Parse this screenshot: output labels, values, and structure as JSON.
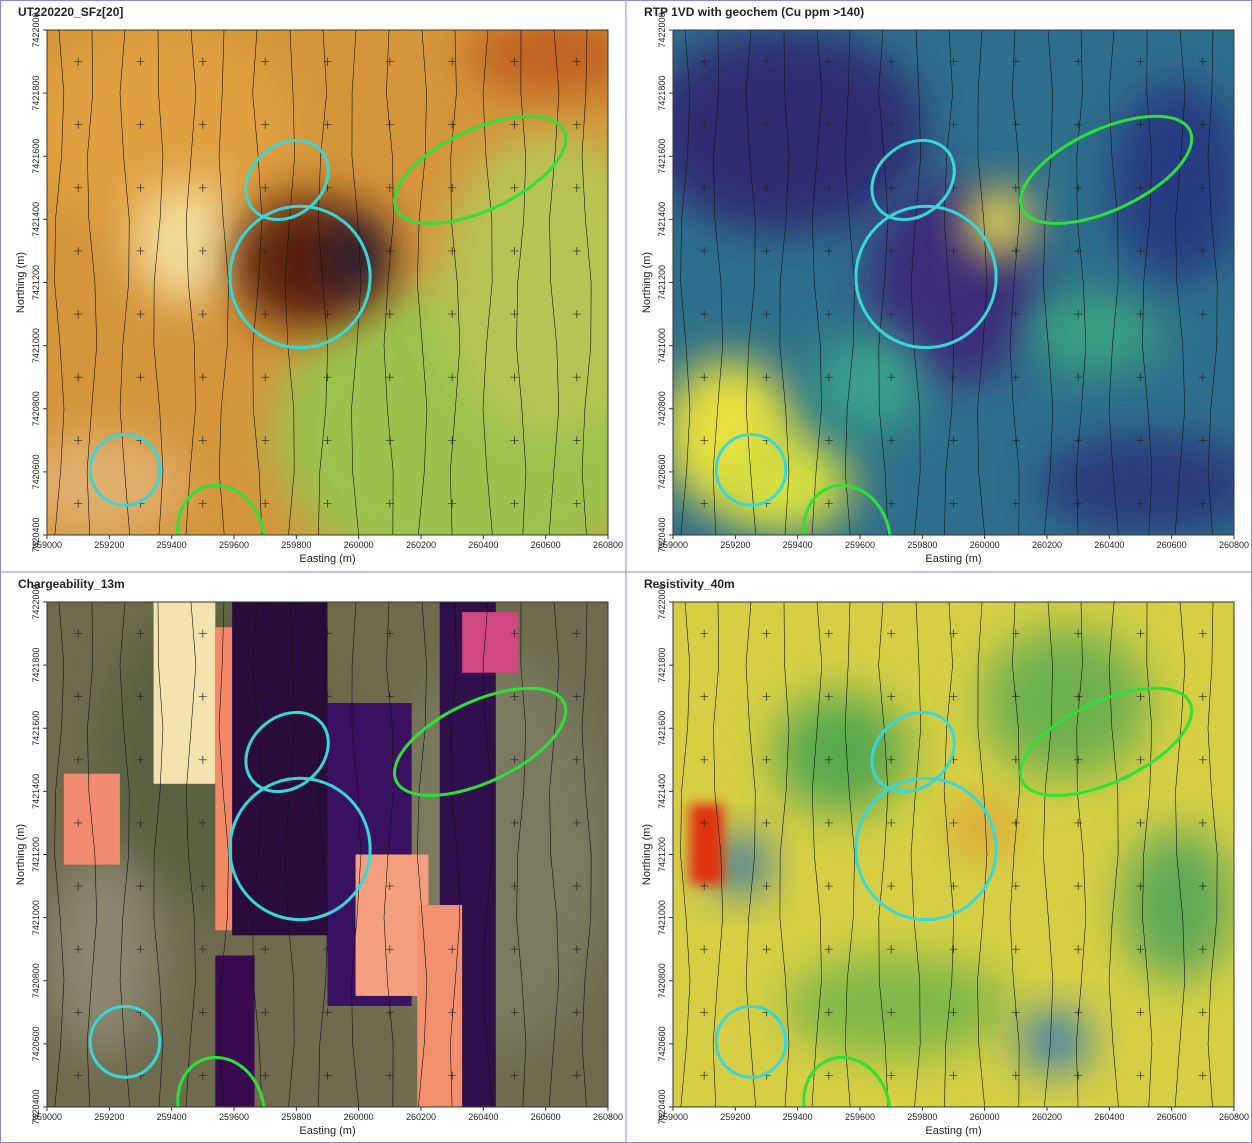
{
  "panels": [
    {
      "title": "UT220220_SFz[20]",
      "x_label": "Easting (m)",
      "y_label": "Northing (m)",
      "xlim": [
        259000,
        260800
      ],
      "ylim": [
        7420400,
        7422000
      ],
      "xticks": [
        259000,
        259200,
        259400,
        259600,
        259800,
        260000,
        260200,
        260400,
        260600,
        260800
      ],
      "yticks": [
        7420400,
        7420600,
        7420800,
        7421000,
        7421200,
        7421400,
        7421600,
        7421800,
        7422000
      ]
    },
    {
      "title": "RTP 1VD with geochem (Cu ppm >140)",
      "x_label": "Easting (m)",
      "y_label": "Northing (m)",
      "xlim": [
        259000,
        260800
      ],
      "ylim": [
        7420400,
        7422000
      ],
      "xticks": [
        259000,
        259200,
        259400,
        259600,
        259800,
        260000,
        260200,
        260400,
        260600,
        260800
      ],
      "yticks": [
        7420400,
        7420600,
        7420800,
        7421000,
        7421200,
        7421400,
        7421600,
        7421800,
        7422000
      ]
    },
    {
      "title": "Chargeability_13m",
      "x_label": "Easting (m)",
      "y_label": "Northing (m)",
      "xlim": [
        259000,
        260800
      ],
      "ylim": [
        7420400,
        7422000
      ],
      "xticks": [
        259000,
        259200,
        259400,
        259600,
        259800,
        260000,
        260200,
        260400,
        260600,
        260800
      ],
      "yticks": [
        7420400,
        7420600,
        7420800,
        7421000,
        7421200,
        7421400,
        7421600,
        7421800,
        7422000
      ]
    },
    {
      "title": "Resistivity_40m",
      "x_label": "Easting (m)",
      "y_label": "Northing (m)",
      "xlim": [
        259000,
        260800
      ],
      "ylim": [
        7420400,
        7422000
      ],
      "xticks": [
        259000,
        259200,
        259400,
        259600,
        259800,
        260000,
        260200,
        260400,
        260600,
        260800
      ],
      "yticks": [
        7420400,
        7420600,
        7420800,
        7421000,
        7421200,
        7421400,
        7421600,
        7421800,
        7422000
      ]
    }
  ]
}
